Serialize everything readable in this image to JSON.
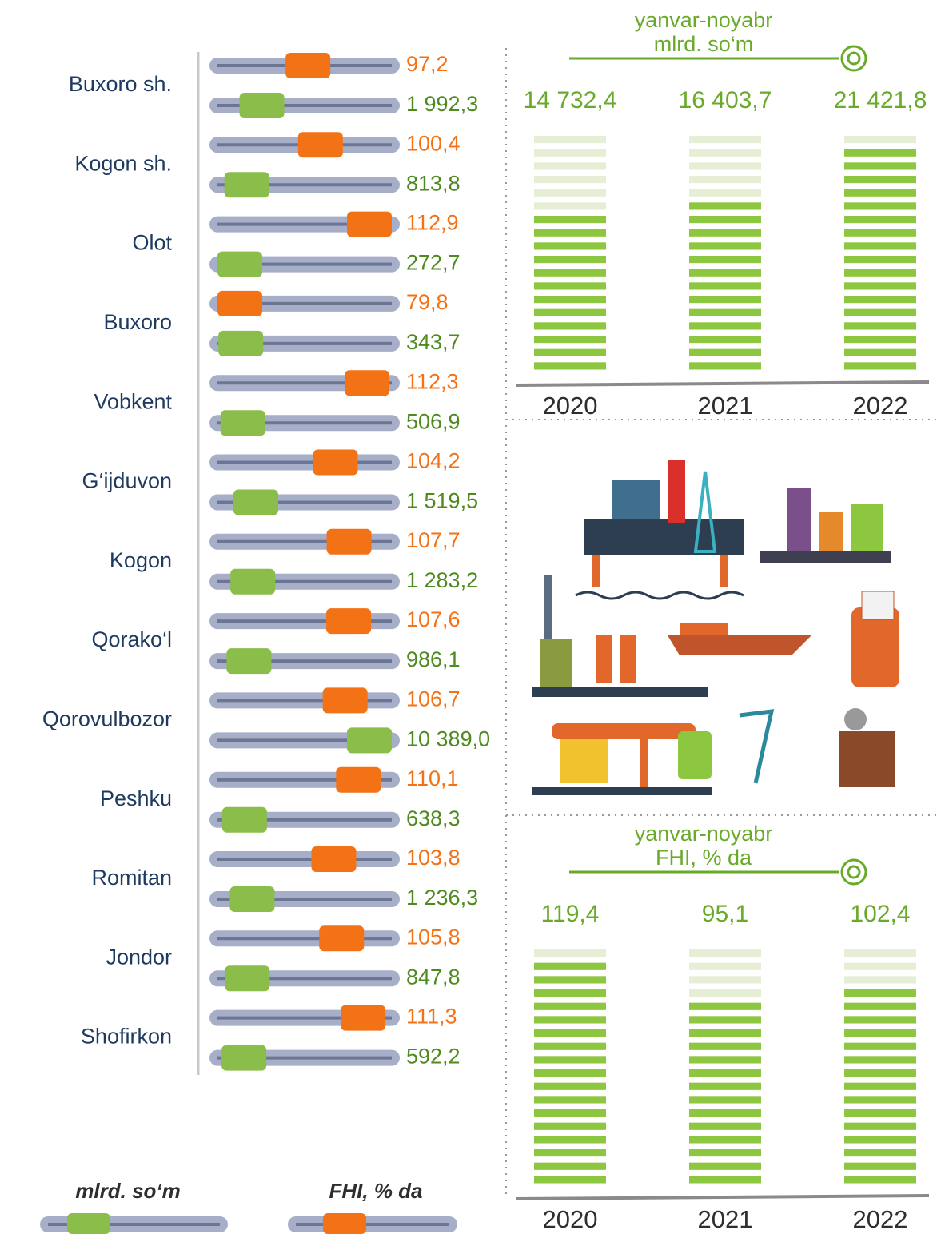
{
  "districts": {
    "names": [
      "Buxoro sh.",
      "Kogon sh.",
      "Olot",
      "Buxoro",
      "Vobkent",
      "G‘ijduvon",
      "Kogon",
      "Qorako‘l",
      "Qorovulbozor",
      "Peshku",
      "Romitan",
      "Jondor",
      "Shofirkon"
    ],
    "fhi": {
      "values": [
        97.2,
        100.4,
        112.9,
        79.8,
        112.3,
        104.2,
        107.7,
        107.6,
        106.7,
        110.1,
        103.8,
        105.8,
        111.3
      ],
      "value_labels": [
        "97,2",
        "100,4",
        "112,9",
        "79,8",
        "112,3",
        "104,2",
        "107,7",
        "107,6",
        "106,7",
        "110,1",
        "103,8",
        "105,8",
        "111,3"
      ],
      "color": "#f47216"
    },
    "volume": {
      "values": [
        1992.3,
        813.8,
        272.7,
        343.7,
        506.9,
        1519.5,
        1283.2,
        986.1,
        10389.0,
        638.3,
        1236.3,
        847.8,
        592.2
      ],
      "value_labels": [
        "1 992,3",
        "813,8",
        "272,7",
        "343,7",
        "506,9",
        "1 519,5",
        "1 283,2",
        "986,1",
        "10 389,0",
        "638,3",
        "1 236,3",
        "847,8",
        "592,2"
      ],
      "color": "#8bbd4a"
    }
  },
  "volume_chart": {
    "type": "bar",
    "title_lines": [
      "yanvar-noyabr",
      "mlrd. so‘m"
    ],
    "categories": [
      "2020",
      "2021",
      "2022"
    ],
    "values": [
      14732.4,
      16403.7,
      21421.8
    ],
    "value_labels": [
      "14 732,4",
      "16 403,7",
      "21 421,8"
    ]
  },
  "fhi_chart": {
    "type": "bar",
    "title_lines": [
      "yanvar-noyabr",
      "FHI, % da"
    ],
    "categories": [
      "2020",
      "2021",
      "2022"
    ],
    "values": [
      119.4,
      95.1,
      102.4
    ],
    "value_labels": [
      "119,4",
      "95,1",
      "102,4"
    ]
  },
  "legend": {
    "volume": "mlrd. so‘m",
    "fhi": "FHI, % da"
  }
}
